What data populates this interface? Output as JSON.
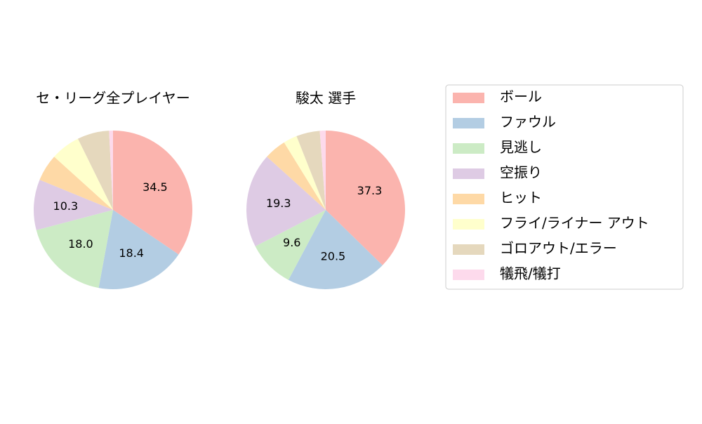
{
  "chart_data": [
    {
      "type": "pie",
      "title": "セ・リーグ全プレイヤー",
      "categories": [
        "ボール",
        "ファウル",
        "見逃し",
        "空振り",
        "ヒット",
        "フライ/ライナー アウト",
        "ゴロアウト/エラー",
        "犠飛/犠打"
      ],
      "values": [
        34.5,
        18.4,
        18.0,
        10.3,
        5.5,
        6.0,
        6.5,
        0.8
      ],
      "value_labels": [
        "34.5",
        "18.4",
        "18.0",
        "10.3",
        null,
        null,
        null,
        null
      ],
      "colors": [
        "#fbb4ae",
        "#b3cde3",
        "#ccebc5",
        "#decbe4",
        "#fed9a6",
        "#ffffcc",
        "#e5d8bd",
        "#fddaec"
      ]
    },
    {
      "type": "pie",
      "title": "駿太  選手",
      "categories": [
        "ボール",
        "ファウル",
        "見逃し",
        "空振り",
        "ヒット",
        "フライ/ライナー アウト",
        "ゴロアウト/エラー",
        "犠飛/犠打"
      ],
      "values": [
        37.3,
        20.5,
        9.6,
        19.3,
        4.5,
        2.8,
        4.8,
        1.2
      ],
      "value_labels": [
        "37.3",
        "20.5",
        "9.6",
        "19.3",
        null,
        null,
        null,
        null
      ],
      "colors": [
        "#fbb4ae",
        "#b3cde3",
        "#ccebc5",
        "#decbe4",
        "#fed9a6",
        "#ffffcc",
        "#e5d8bd",
        "#fddaec"
      ]
    }
  ]
}
